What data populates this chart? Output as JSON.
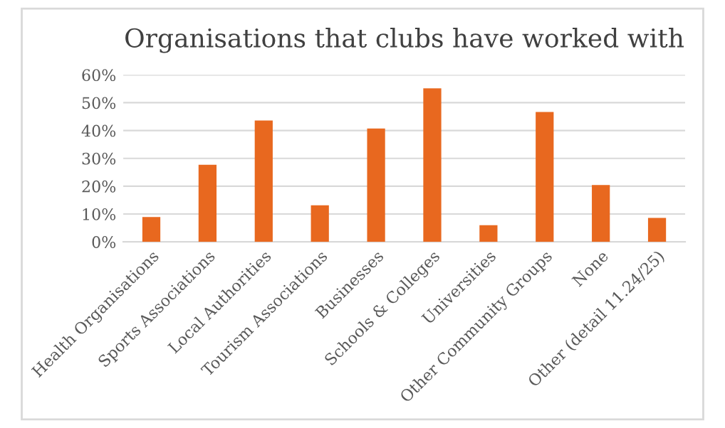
{
  "chart_data": {
    "type": "bar",
    "title": "Organisations that clubs have worked with",
    "categories": [
      "Health Organisations",
      "Sports Associations",
      "Local Authorities",
      "Tourism Associations",
      "Businesses",
      "Schools & Colleges",
      "Universities",
      "Other Community Groups",
      "None",
      "Other (detail 11.24/25)"
    ],
    "values": [
      8.9,
      27.7,
      43.6,
      13.1,
      40.7,
      55.2,
      6.0,
      46.7,
      20.4,
      8.6
    ],
    "color": "#e8681f",
    "ylim": [
      0,
      60
    ],
    "yticks": [
      {
        "value": 0,
        "label": "0%"
      },
      {
        "value": 10,
        "label": "10%"
      },
      {
        "value": 20,
        "label": "20%"
      },
      {
        "value": 30,
        "label": "30%"
      },
      {
        "value": 40,
        "label": "40%"
      },
      {
        "value": 50,
        "label": "50%"
      },
      {
        "value": 60,
        "label": "60%"
      }
    ],
    "grid": "y"
  }
}
